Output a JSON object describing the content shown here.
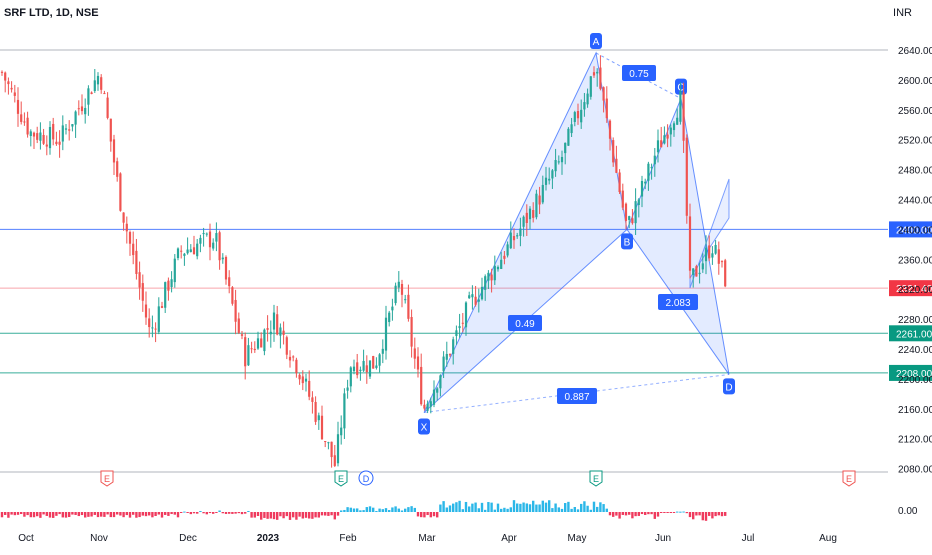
{
  "header": {
    "symbol": "SRF LTD, 1D, NSE",
    "currency": "INR"
  },
  "chart_data": {
    "type": "candlestick",
    "symbol": "SRF LTD, 1D, NSE",
    "y_range": [
      2052,
      2672
    ],
    "y_ticks": [
      2080,
      2120,
      2160,
      2200,
      2240,
      2280,
      2320,
      2360,
      2400,
      2440,
      2480,
      2520,
      2560,
      2600,
      2640
    ],
    "y_tick_labels": [
      "2080.00",
      "2120.00",
      "2160.00",
      "2200.00",
      "2240.00",
      "2280.00",
      "2320.00",
      "2360.00",
      "2400.00",
      "2440.00",
      "2480.00",
      "2520.00",
      "2560.00",
      "2600.00",
      "2640.00"
    ],
    "x_labels": [
      "Oct",
      "Nov",
      "Dec",
      "2023",
      "Feb",
      "Mar",
      "Apr",
      "May",
      "Jun",
      "Jul",
      "Aug"
    ],
    "price_levels": [
      {
        "value": 2400.0,
        "label": "2400.00",
        "color": "#2962ff"
      },
      {
        "value": 2321.4,
        "label": "2321.40",
        "color": "#f23645"
      },
      {
        "value": 2261.0,
        "label": "2261.00",
        "color": "#089981"
      },
      {
        "value": 2208.0,
        "label": "2208.00",
        "color": "#089981"
      }
    ],
    "top_line": 2640,
    "harmonic_pattern": {
      "points": [
        {
          "name": "X",
          "value": 2155
        },
        {
          "name": "A",
          "value": 2636
        },
        {
          "name": "B",
          "value": 2400
        },
        {
          "name": "C",
          "value": 2575
        },
        {
          "name": "D",
          "value": 2206
        }
      ],
      "ratios": [
        "0.75",
        "0.49",
        "2.083",
        "0.887"
      ]
    },
    "events": [
      "E",
      "E",
      "D",
      "E",
      "E"
    ],
    "indicator": {
      "zero_label": "0.00"
    },
    "colors": {
      "up": "#26a69a",
      "down": "#ef5350",
      "pattern": "#2962ff",
      "hist_up": "#2bb7e8",
      "hist_down": "#ef3a5d"
    }
  }
}
